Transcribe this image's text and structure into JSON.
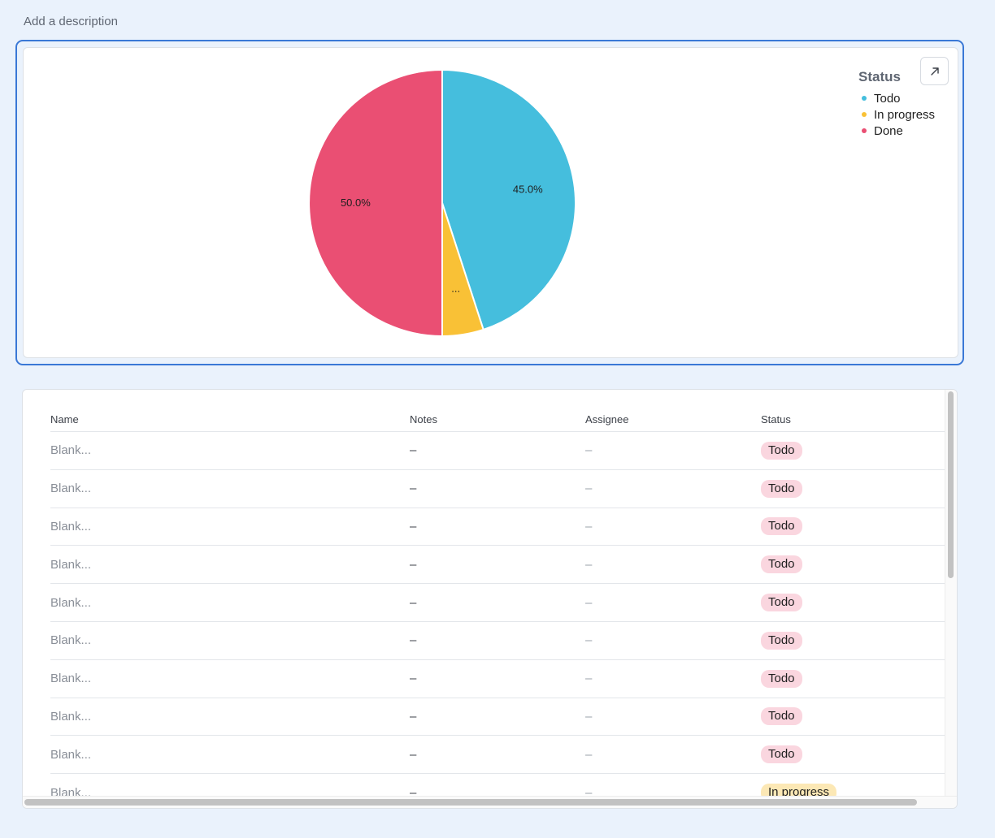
{
  "description": "Add a description",
  "colors": {
    "todo": "#45BEDD",
    "in_progress": "#F9C136",
    "done": "#EA4F73",
    "todo_badge_bg": "#FAD6DF",
    "in_progress_badge_bg": "#FCE8B5"
  },
  "chart": {
    "expand_icon": "arrow-up-right-icon",
    "chart_data": {
      "type": "pie",
      "legend_title": "Status",
      "legend_position": "top-right",
      "slices": [
        {
          "label": "Todo",
          "value": 45.0,
          "display": "45.0%"
        },
        {
          "label": "In progress",
          "value": 5.0,
          "display": "..."
        },
        {
          "label": "Done",
          "value": 50.0,
          "display": "50.0%"
        }
      ]
    }
  },
  "table": {
    "columns": {
      "name": "Name",
      "notes": "Notes",
      "assignee": "Assignee",
      "status": "Status"
    },
    "rows": [
      {
        "name": "Blank...",
        "notes": "–",
        "assignee": "–",
        "status": "Todo"
      },
      {
        "name": "Blank...",
        "notes": "–",
        "assignee": "–",
        "status": "Todo"
      },
      {
        "name": "Blank...",
        "notes": "–",
        "assignee": "–",
        "status": "Todo"
      },
      {
        "name": "Blank...",
        "notes": "–",
        "assignee": "–",
        "status": "Todo"
      },
      {
        "name": "Blank...",
        "notes": "–",
        "assignee": "–",
        "status": "Todo"
      },
      {
        "name": "Blank...",
        "notes": "–",
        "assignee": "–",
        "status": "Todo"
      },
      {
        "name": "Blank...",
        "notes": "–",
        "assignee": "–",
        "status": "Todo"
      },
      {
        "name": "Blank...",
        "notes": "–",
        "assignee": "–",
        "status": "Todo"
      },
      {
        "name": "Blank...",
        "notes": "–",
        "assignee": "–",
        "status": "Todo"
      },
      {
        "name": "Blank...",
        "notes": "–",
        "assignee": "–",
        "status": "In progress"
      }
    ]
  }
}
